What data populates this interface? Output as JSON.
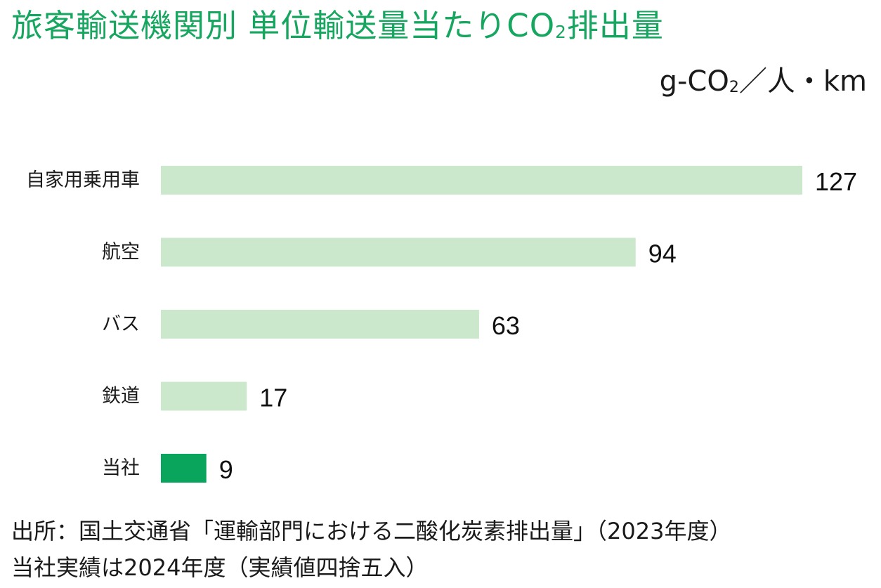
{
  "chart_data": {
    "type": "bar",
    "orientation": "horizontal",
    "title": {
      "prefix": "旅客輸送機関別 単位輸送量当たりCO",
      "subscript": "2",
      "suffix": "排出量"
    },
    "unit": {
      "prefix": "g-CO",
      "subscript": "2",
      "suffix": "／人・km"
    },
    "categories": [
      "自家用乗用車",
      "航空",
      "バス",
      "鉄道",
      "当社"
    ],
    "values": [
      127,
      94,
      63,
      17,
      9
    ],
    "value_labels": [
      "127",
      "94",
      "63",
      "17",
      "9"
    ],
    "xlim": [
      0,
      127
    ],
    "grid": false,
    "legend": "none",
    "colors": {
      "default_bar": "#cbe8cc",
      "highlight_bar": "#0aa55c",
      "title": "#17a660"
    },
    "highlight_category": "当社"
  },
  "notes": {
    "source": "出所：国土交通省「運輸部門における二酸化炭素排出量」（2023年度）",
    "company": "当社実績は2024年度（実績値四捨五入）"
  }
}
